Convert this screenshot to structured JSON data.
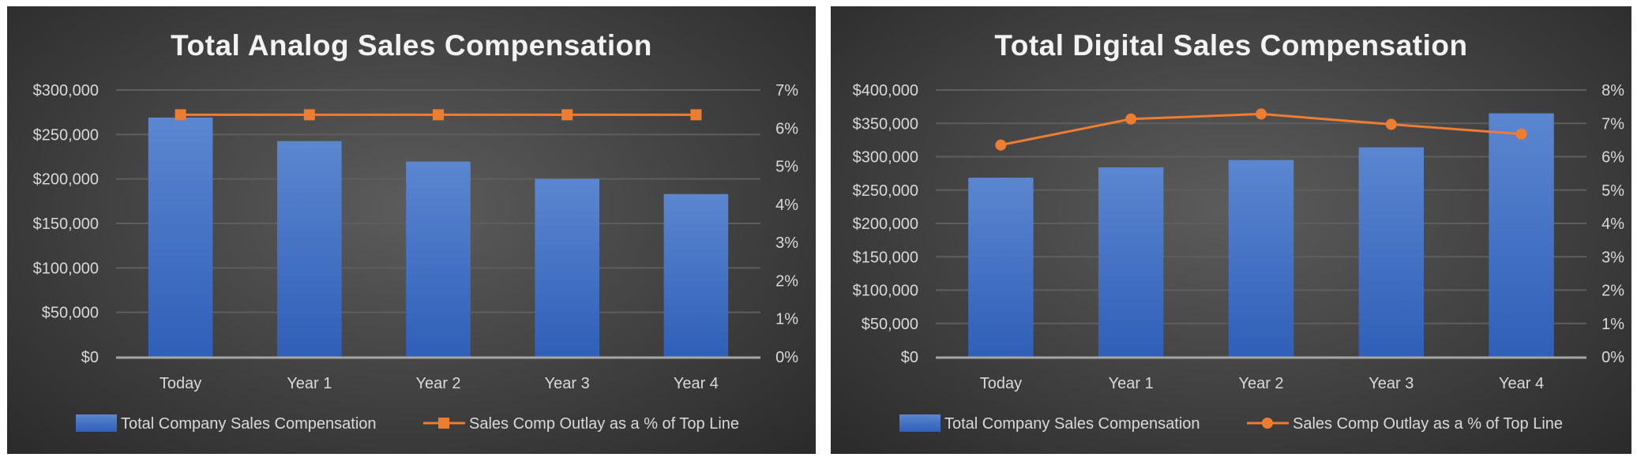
{
  "chart_data": [
    {
      "type": "bar+line",
      "title": "Total Analog Sales Compensation",
      "categories": [
        "Today",
        "Year 1",
        "Year 2",
        "Year 3",
        "Year 4"
      ],
      "series": [
        {
          "name": "Total Company Sales Compensation",
          "type": "bar",
          "axis": "left",
          "values": [
            269000,
            242500,
            219500,
            200000,
            183000
          ]
        },
        {
          "name": "Sales Comp Outlay as a % of Top Line",
          "type": "line",
          "marker": "square",
          "axis": "right",
          "values": [
            6.35,
            6.35,
            6.35,
            6.35,
            6.35
          ]
        }
      ],
      "y_left": {
        "range": [
          0,
          300000
        ],
        "ticks": [
          "$0",
          "$50,000",
          "$100,000",
          "$150,000",
          "$200,000",
          "$250,000",
          "$300,000"
        ]
      },
      "y_right": {
        "range": [
          0,
          7
        ],
        "ticks": [
          "0%",
          "1%",
          "2%",
          "3%",
          "4%",
          "5%",
          "6%",
          "7%"
        ]
      },
      "grid": true,
      "legend": "bottom",
      "colors": {
        "bar": "#4472c4",
        "line": "#ed7d31"
      }
    },
    {
      "type": "bar+line",
      "title": "Total Digital Sales Compensation",
      "categories": [
        "Today",
        "Year 1",
        "Year 2",
        "Year 3",
        "Year 4"
      ],
      "series": [
        {
          "name": "Total Company Sales Compensation",
          "type": "bar",
          "axis": "left",
          "values": [
            268500,
            284000,
            295000,
            314000,
            365000
          ]
        },
        {
          "name": "Sales Comp Outlay as a % of Top Line",
          "type": "line",
          "marker": "circle",
          "axis": "right",
          "values": [
            6.35,
            7.13,
            7.28,
            6.97,
            6.68
          ]
        }
      ],
      "y_left": {
        "range": [
          0,
          400000
        ],
        "ticks": [
          "$0",
          "$50,000",
          "$100,000",
          "$150,000",
          "$200,000",
          "$250,000",
          "$300,000",
          "$350,000",
          "$400,000"
        ]
      },
      "y_right": {
        "range": [
          0,
          8
        ],
        "ticks": [
          "0%",
          "1%",
          "2%",
          "3%",
          "4%",
          "5%",
          "6%",
          "7%",
          "8%"
        ]
      },
      "grid": true,
      "legend": "bottom",
      "colors": {
        "bar": "#4472c4",
        "line": "#ed7d31"
      }
    }
  ]
}
